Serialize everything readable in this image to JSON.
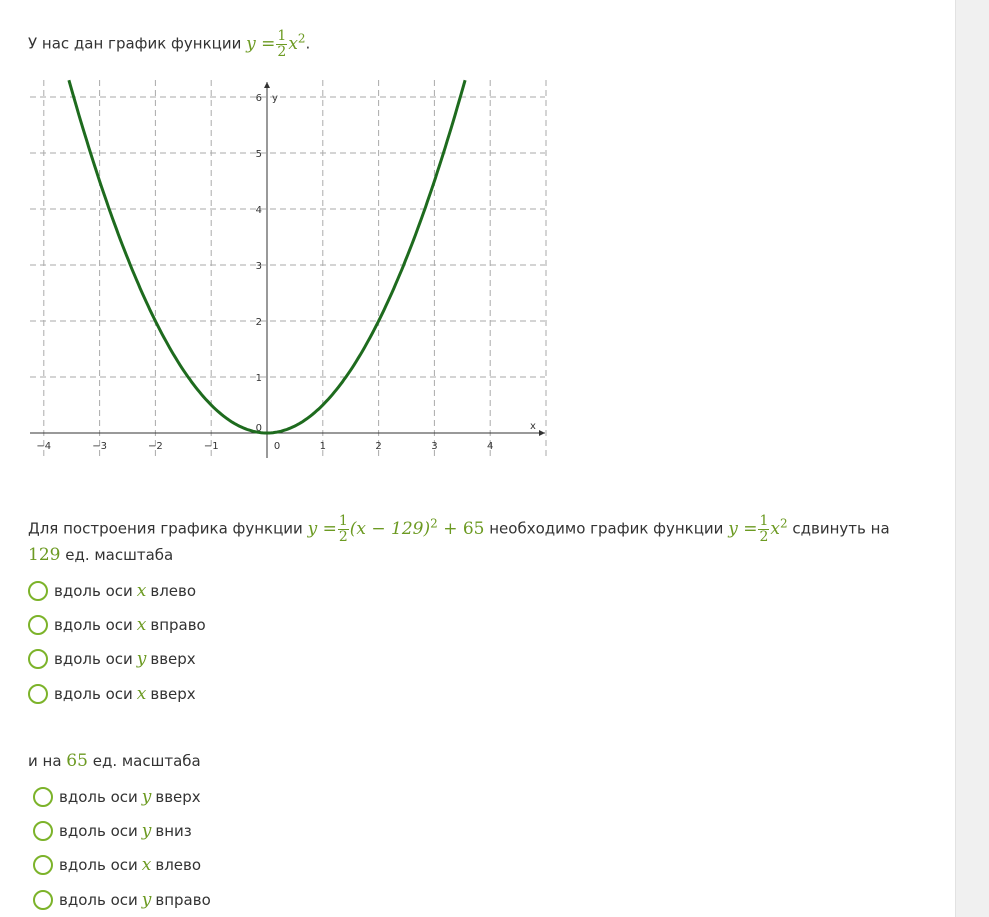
{
  "intro": {
    "text": "У нас дан график функции",
    "formula": {
      "lhs": "y =",
      "num": "1",
      "den": "2",
      "var": "x",
      "exp": "2"
    },
    "end": "."
  },
  "question1": {
    "text_before": "Для построения графика функции",
    "formula": {
      "lhs": "y =",
      "num": "1",
      "den": "2",
      "body": "(x − 129)",
      "exp": "2",
      "tail": "+ 65"
    },
    "text_mid": "необходимо график функции",
    "formula2": {
      "lhs": "y =",
      "num": "1",
      "den": "2",
      "var": "x",
      "exp": "2"
    },
    "text_after": "сдвинуть на",
    "value": "129",
    "unit": "ед. масштаба",
    "options": [
      {
        "pre": "вдоль оси",
        "var": "x",
        "post": "влево"
      },
      {
        "pre": "вдоль оси",
        "var": "x",
        "post": "вправо"
      },
      {
        "pre": "вдоль оси",
        "var": "y",
        "post": "вверх"
      },
      {
        "pre": "вдоль оси",
        "var": "x",
        "post": "вверх"
      }
    ]
  },
  "question2": {
    "pre": "и на",
    "value": "65",
    "unit": "ед. масштаба",
    "options": [
      {
        "pre": "вдоль оси",
        "var": "y",
        "post": "вверх"
      },
      {
        "pre": "вдоль оси",
        "var": "y",
        "post": "вниз"
      },
      {
        "pre": "вдоль оси",
        "var": "x",
        "post": "влево"
      },
      {
        "pre": "вдоль оси",
        "var": "y",
        "post": "вправо"
      }
    ]
  },
  "chart_data": {
    "type": "line",
    "function": "y = 0.5*x^2",
    "xlabel": "x",
    "ylabel": "y",
    "xlim": [
      -4.4,
      5
    ],
    "ylim": [
      -0.4,
      6.3
    ],
    "xticks": [
      -4,
      -3,
      -2,
      -1,
      0,
      1,
      2,
      3,
      4
    ],
    "yticks": [
      0,
      1,
      2,
      3,
      4,
      5,
      6
    ],
    "xtick_labels": [
      "−4",
      "−3",
      "−2",
      "−1",
      "0",
      "1",
      "2",
      "3",
      "4"
    ],
    "ytick_labels": [
      "0",
      "1",
      "2",
      "3",
      "4",
      "5",
      "6"
    ],
    "grid": true,
    "curve_color": "#1e6b1e"
  }
}
